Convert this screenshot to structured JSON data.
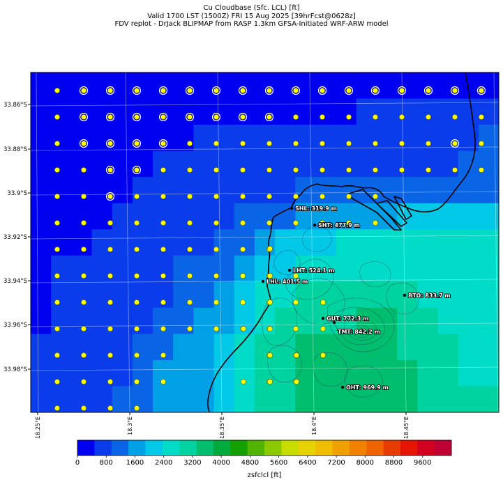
{
  "header": {
    "line1": "Cu Cloudbase (Sfc. LCL) [ft]",
    "line2": "Valid 1700 LST (1500Z) FRI 15 Aug 2025 [39hrFcst@0628z]",
    "line3": "FDV replot - DrJack BLIPMAP from RASP 1.3km GFSA-Initiated WRF-ARW model"
  },
  "map": {
    "lat_labels": [
      "33.86°S",
      "33.88°S",
      "33.9°S",
      "33.92°S",
      "33.94°S",
      "33.96°S",
      "33.98°S"
    ],
    "lon_labels": [
      "18.25°E",
      "18.3°E",
      "18.35°E",
      "18.4°E",
      "18.45°E"
    ],
    "stations": [
      {
        "label": "SHL: 319.9 m"
      },
      {
        "label": "SHT: 477.9 m"
      },
      {
        "label": "LHT: 524.1 m"
      },
      {
        "label": "LHL: 401.5 m"
      },
      {
        "label": "BTO: 833.7 m"
      },
      {
        "label": "GUT: 772.3 m"
      },
      {
        "label": "TMT: 842.2 m"
      },
      {
        "label": "OHT: 969.9 m"
      }
    ]
  },
  "colorbar": {
    "title": "zsfclcl [ft]",
    "tick_labels": [
      "0",
      "800",
      "1600",
      "2400",
      "3200",
      "4000",
      "4800",
      "5600",
      "6400",
      "7200",
      "8000",
      "8800",
      "9600"
    ],
    "colors": [
      "#0000f0",
      "#0a3ceb",
      "#0a64e6",
      "#00a0e6",
      "#00c8e6",
      "#00dcc8",
      "#00d2a0",
      "#00be6e",
      "#00aa3c",
      "#14a000",
      "#50b400",
      "#8cc800",
      "#c8dc00",
      "#e6d200",
      "#f0be00",
      "#f0a000",
      "#f08200",
      "#f06400",
      "#e63c00",
      "#e61400",
      "#d2001e",
      "#be0032"
    ]
  }
}
